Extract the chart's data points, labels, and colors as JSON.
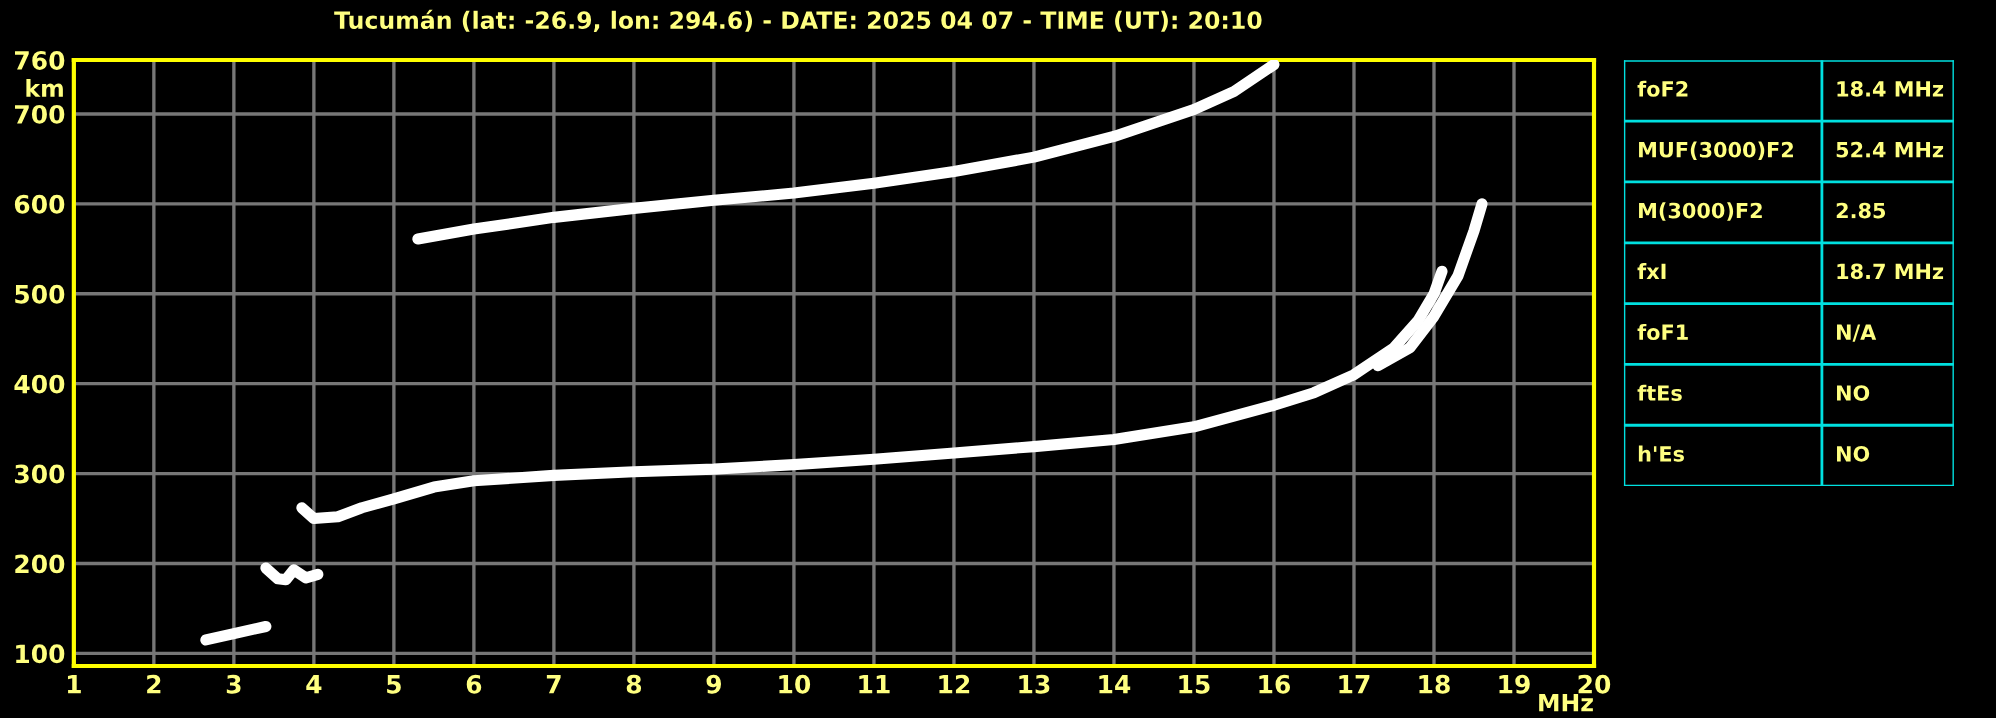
{
  "chart_data": [
    {
      "type": "line",
      "title": "Tucumán (lat: -26.9, lon: 294.6) - DATE: 2025 04 07 - TIME (UT): 20:10",
      "xlabel": "MHz",
      "ylabel": "km",
      "xlim": [
        1,
        20
      ],
      "ylim": [
        86,
        760
      ],
      "xticks": [
        1,
        2,
        3,
        4,
        5,
        6,
        7,
        8,
        9,
        10,
        11,
        12,
        13,
        14,
        15,
        16,
        17,
        18,
        19,
        20
      ],
      "yticks": [
        100,
        200,
        300,
        400,
        500,
        600,
        700,
        760
      ],
      "grid": true,
      "marker": "none",
      "line_style": "solid",
      "series": [
        {
          "color": "#ffffff",
          "x": [
            3.85,
            4.0,
            4.3,
            4.6,
            5.0,
            5.5,
            6.0,
            7.0,
            8.0,
            9.0,
            10.0,
            11.0,
            12.0,
            13.0,
            14.0,
            15.0,
            16.0,
            16.5,
            17.0,
            17.5,
            17.8,
            18.0,
            18.1
          ],
          "values": [
            262,
            250,
            252,
            262,
            272,
            285,
            292,
            298,
            302,
            305,
            310,
            316,
            323,
            330,
            338,
            352,
            376,
            390,
            410,
            440,
            470,
            500,
            525
          ]
        },
        {
          "color": "#ffffff",
          "x": [
            17.3,
            17.7,
            18.0,
            18.3,
            18.5,
            18.6
          ],
          "values": [
            420,
            440,
            475,
            520,
            570,
            600
          ]
        },
        {
          "color": "#ffffff",
          "x": [
            5.3,
            6.0,
            7.0,
            8.0,
            9.0,
            10.0,
            11.0,
            12.0,
            13.0,
            14.0,
            15.0,
            15.5,
            16.0
          ],
          "values": [
            561,
            572,
            585,
            595,
            604,
            612,
            623,
            636,
            652,
            675,
            705,
            725,
            755
          ]
        },
        {
          "color": "#ffffff",
          "x": [
            2.65,
            3.0,
            3.4
          ],
          "values": [
            115,
            122,
            130
          ]
        },
        {
          "color": "#ffffff",
          "x": [
            3.4,
            3.55,
            3.65,
            3.75,
            3.9,
            4.05
          ],
          "values": [
            195,
            183,
            182,
            193,
            184,
            188
          ]
        }
      ]
    },
    {
      "type": "other",
      "annotations": [
        "foF2",
        "18.4 MHz",
        "MUF(3000)F2",
        "52.4 MHz",
        "M(3000)F2",
        "2.85",
        "fxI",
        "18.7 MHz",
        "foF1",
        "N/A",
        "ftEs",
        "NO",
        "h'Es",
        "NO"
      ]
    }
  ]
}
